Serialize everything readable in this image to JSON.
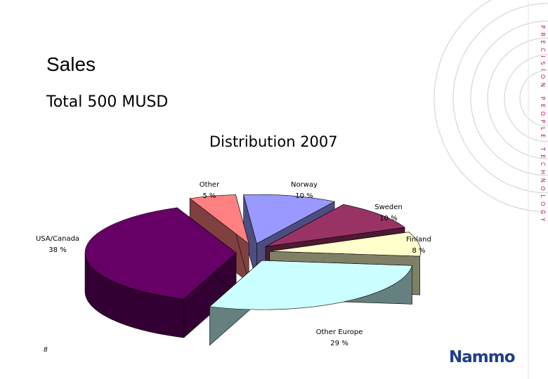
{
  "slide": {
    "title": "Sales",
    "subtitle": "Total 500 MUSD",
    "page_number": "8",
    "tagline": "PRECISION PEOPLE TECHNOLOGY",
    "logo_text": "Nammo",
    "accent_color": "#c8102e",
    "logo_color": "#1f3c8c"
  },
  "chart_data": {
    "type": "pie",
    "title": "Distribution 2007",
    "slices": [
      {
        "label": "Norway",
        "value": 10,
        "value_label": "10 %",
        "color": "#9999ff",
        "side_color": "#4d4d80"
      },
      {
        "label": "Sweden",
        "value": 10,
        "value_label": "10 %",
        "color": "#993366",
        "side_color": "#4d1a33"
      },
      {
        "label": "Finland",
        "value": 8,
        "value_label": "8 %",
        "color": "#ffffcc",
        "side_color": "#808066"
      },
      {
        "label": "Other Europe",
        "value": 29,
        "value_label": "29 %",
        "color": "#ccffff",
        "side_color": "#668080"
      },
      {
        "label": "USA/Canada",
        "value": 38,
        "value_label": "38 %",
        "color": "#660066",
        "side_color": "#330033"
      },
      {
        "label": "Other",
        "value": 5,
        "value_label": "5 %",
        "color": "#ff8080",
        "side_color": "#804040"
      }
    ],
    "style": "3d-exploded"
  }
}
